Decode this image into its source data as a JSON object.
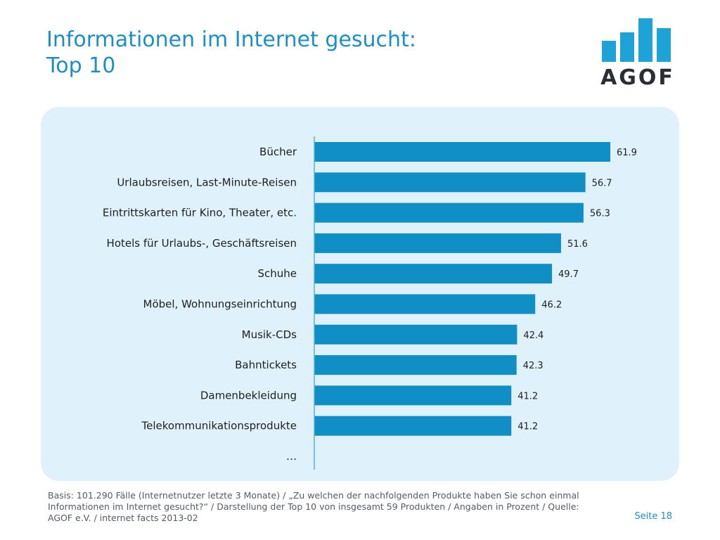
{
  "title": "Informationen im Internet gesucht:\nTop 10",
  "logo": {
    "text": "AGOF",
    "bar_color": "#1ea3d8"
  },
  "chart_data": {
    "type": "bar",
    "orientation": "horizontal",
    "categories": [
      "Bücher",
      "Urlaubsreisen, Last-Minute-Reisen",
      "Eintrittskarten für Kino, Theater, etc.",
      "Hotels für Urlaubs-, Geschäftsreisen",
      "Schuhe",
      "Möbel, Wohnungseinrichtung",
      "Musik-CDs",
      "Bahntickets",
      "Damenbekleidung",
      "Telekommunikationsprodukte",
      "…"
    ],
    "values": [
      61.9,
      56.7,
      56.3,
      51.6,
      49.7,
      46.2,
      42.4,
      42.3,
      41.2,
      41.2,
      null
    ],
    "value_labels": [
      "61.9",
      "56.7",
      "56.3",
      "51.6",
      "49.7",
      "46.2",
      "42.4",
      "42.3",
      "41.2",
      "41.2",
      ""
    ],
    "xlim": [
      0,
      65
    ],
    "bar_color": "#0f8fc6",
    "grid": false,
    "legend": "none"
  },
  "footnote": "Basis: 101.290 Fälle (Internetnutzer letzte 3 Monate) / „Zu welchen der nachfolgenden Produkte haben Sie schon einmal Informationen im Internet gesucht?“ / Darstellung der Top 10 von insgesamt 59 Produkten / Angaben in Prozent / Quelle: AGOF e.V. / internet facts 2013-02",
  "page_number": "Seite 18"
}
